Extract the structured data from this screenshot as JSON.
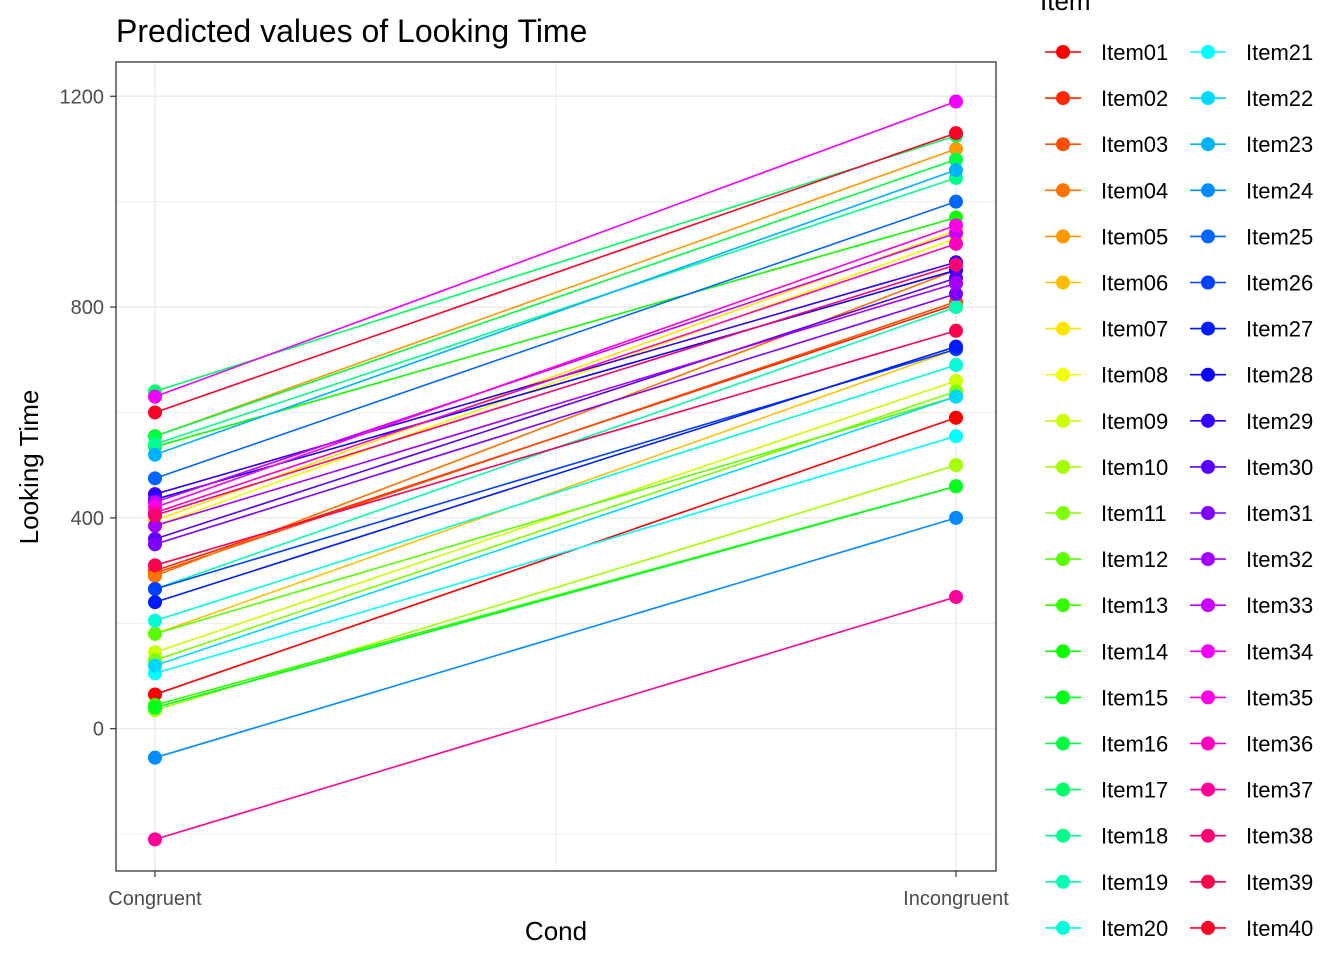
{
  "chart_data": {
    "type": "line",
    "title": "Predicted values of Looking Time",
    "xlabel": "Cond",
    "ylabel": "Looking Time",
    "categories": [
      "Congruent",
      "Incongruent"
    ],
    "ylim": [
      -270,
      1265
    ],
    "yticks": [
      0,
      400,
      800,
      1200
    ],
    "grid": true,
    "legend": {
      "title": "Item",
      "placement": "right",
      "columns": 2
    },
    "series": [
      {
        "name": "Item01",
        "color": "#FF0000",
        "values": [
          65,
          590
        ]
      },
      {
        "name": "Item02",
        "color": "#FF2600",
        "values": [
          300,
          805
        ]
      },
      {
        "name": "Item03",
        "color": "#FF4D00",
        "values": [
          295,
          810
        ]
      },
      {
        "name": "Item04",
        "color": "#FF7300",
        "values": [
          290,
          870
        ]
      },
      {
        "name": "Item05",
        "color": "#FF9900",
        "values": [
          555,
          1100
        ]
      },
      {
        "name": "Item06",
        "color": "#FFBF00",
        "values": [
          180,
          720
        ]
      },
      {
        "name": "Item07",
        "color": "#FFE500",
        "values": [
          395,
          945
        ]
      },
      {
        "name": "Item08",
        "color": "#F2FF00",
        "values": [
          385,
          930
        ]
      },
      {
        "name": "Item09",
        "color": "#CCFF00",
        "values": [
          145,
          660
        ]
      },
      {
        "name": "Item10",
        "color": "#A6FF00",
        "values": [
          35,
          500
        ]
      },
      {
        "name": "Item11",
        "color": "#80FF00",
        "values": [
          130,
          640
        ]
      },
      {
        "name": "Item12",
        "color": "#59FF00",
        "values": [
          180,
          630
        ]
      },
      {
        "name": "Item13",
        "color": "#33FF00",
        "values": [
          45,
          460
        ]
      },
      {
        "name": "Item14",
        "color": "#0DFF00",
        "values": [
          535,
          970
        ]
      },
      {
        "name": "Item15",
        "color": "#00FF1A",
        "values": [
          40,
          460
        ]
      },
      {
        "name": "Item16",
        "color": "#00FF40",
        "values": [
          555,
          1080
        ]
      },
      {
        "name": "Item17",
        "color": "#00FF66",
        "values": [
          640,
          1125
        ]
      },
      {
        "name": "Item18",
        "color": "#00FF8C",
        "values": [
          540,
          1045
        ]
      },
      {
        "name": "Item19",
        "color": "#00FFB2",
        "values": [
          265,
          800
        ]
      },
      {
        "name": "Item20",
        "color": "#00FFD9",
        "values": [
          205,
          690
        ]
      },
      {
        "name": "Item21",
        "color": "#00FFFF",
        "values": [
          105,
          555
        ]
      },
      {
        "name": "Item22",
        "color": "#00D9FF",
        "values": [
          120,
          630
        ]
      },
      {
        "name": "Item23",
        "color": "#00B3FF",
        "values": [
          520,
          1060
        ]
      },
      {
        "name": "Item24",
        "color": "#008CFF",
        "values": [
          -55,
          400
        ]
      },
      {
        "name": "Item25",
        "color": "#0066FF",
        "values": [
          475,
          1000
        ]
      },
      {
        "name": "Item26",
        "color": "#0040FF",
        "values": [
          265,
          720
        ]
      },
      {
        "name": "Item27",
        "color": "#001AFF",
        "values": [
          240,
          725
        ]
      },
      {
        "name": "Item28",
        "color": "#0D00FF",
        "values": [
          435,
          870
        ]
      },
      {
        "name": "Item29",
        "color": "#3300FF",
        "values": [
          445,
          885
        ]
      },
      {
        "name": "Item30",
        "color": "#5900FF",
        "values": [
          360,
          855
        ]
      },
      {
        "name": "Item31",
        "color": "#8000FF",
        "values": [
          350,
          825
        ]
      },
      {
        "name": "Item32",
        "color": "#A600FF",
        "values": [
          385,
          845
        ]
      },
      {
        "name": "Item33",
        "color": "#CC00FF",
        "values": [
          430,
          940
        ]
      },
      {
        "name": "Item34",
        "color": "#F200FF",
        "values": [
          630,
          1190
        ]
      },
      {
        "name": "Item35",
        "color": "#FF00E6",
        "values": [
          420,
          955
        ]
      },
      {
        "name": "Item36",
        "color": "#FF00BF",
        "values": [
          410,
          920
        ]
      },
      {
        "name": "Item37",
        "color": "#FF0099",
        "values": [
          -210,
          250
        ]
      },
      {
        "name": "Item38",
        "color": "#FF0073",
        "values": [
          405,
          880
        ]
      },
      {
        "name": "Item39",
        "color": "#FF004D",
        "values": [
          310,
          755
        ]
      },
      {
        "name": "Item40",
        "color": "#FF0026",
        "values": [
          600,
          1130
        ]
      }
    ]
  }
}
